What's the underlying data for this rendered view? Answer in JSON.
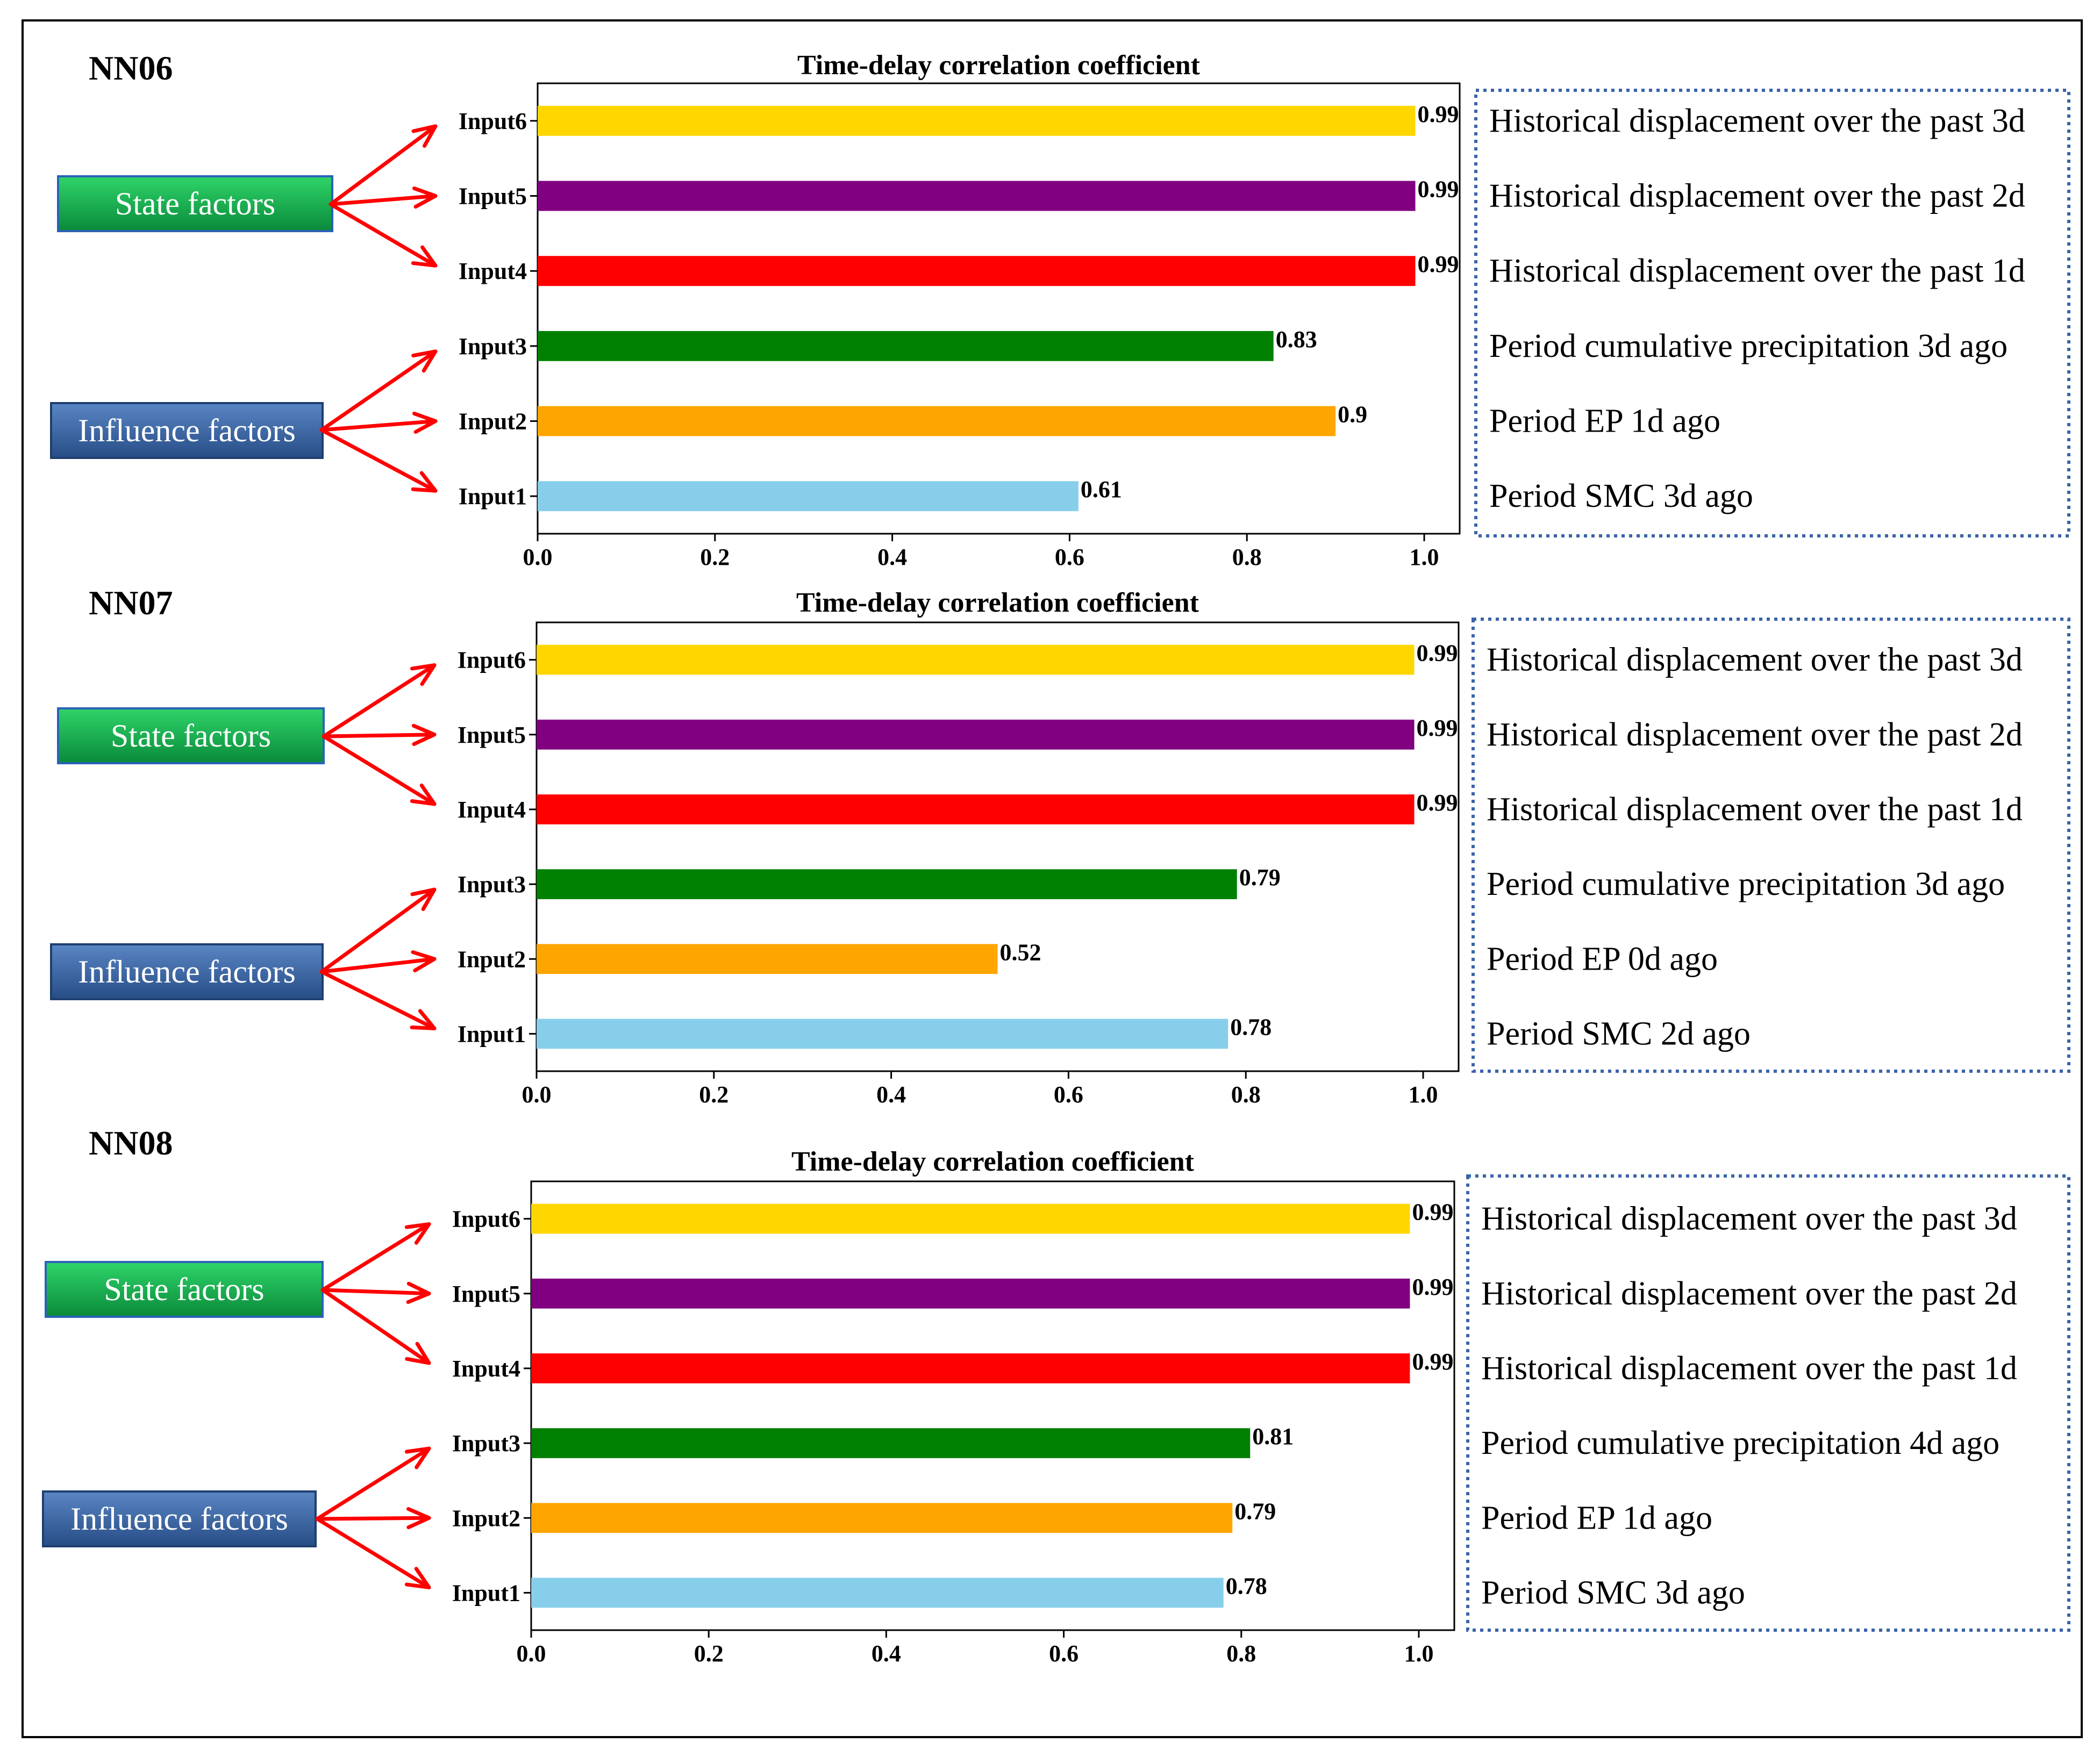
{
  "colors": {
    "state_box_top": "#2fd46a",
    "state_box_bottom": "#0a8a3a",
    "influence_box_top": "#5a86c4",
    "influence_box_bottom": "#274d86",
    "arrow": "#ff0000",
    "dotted_border": "#3a64a8"
  },
  "panels": [
    {
      "label": "NN06",
      "state_label": "State factors",
      "influence_label": "Influence factors",
      "descriptions": [
        "Historical displacement over the past 3d",
        "Historical displacement over the past 2d",
        "Historical displacement over the past 1d",
        "Period cumulative precipitation 3d ago",
        "Period EP 1d ago",
        "Period SMC 3d ago"
      ]
    },
    {
      "label": "NN07",
      "state_label": "State factors",
      "influence_label": "Influence factors",
      "descriptions": [
        "Historical displacement over the past 3d",
        "Historical displacement over the past 2d",
        "Historical displacement over the past 1d",
        "Period cumulative precipitation 3d ago",
        "Period EP 0d ago",
        "Period SMC 2d ago"
      ]
    },
    {
      "label": "NN08",
      "state_label": "State factors",
      "influence_label": "Influence factors",
      "descriptions": [
        "Historical displacement over the past 3d",
        "Historical displacement over the past 2d",
        "Historical displacement over the past 1d",
        "Period cumulative precipitation 4d ago",
        "Period EP 1d ago",
        "Period SMC 3d ago"
      ]
    }
  ],
  "chart_data": [
    {
      "type": "bar",
      "orientation": "horizontal",
      "title": "Time-delay correlation coefficient",
      "categories": [
        "Input6",
        "Input5",
        "Input4",
        "Input3",
        "Input2",
        "Input1"
      ],
      "values": [
        0.99,
        0.99,
        0.99,
        0.83,
        0.9,
        0.61
      ],
      "value_labels": [
        "0.99",
        "0.99",
        "0.99",
        "0.83",
        "0.9",
        "0.61"
      ],
      "colors": [
        "#FFD700",
        "#800080",
        "#FF0000",
        "#008000",
        "#FFA500",
        "#87CEEB"
      ],
      "xlim": [
        0,
        1.04
      ],
      "xticks": [
        0.0,
        0.2,
        0.4,
        0.6,
        0.8,
        1.0
      ],
      "xtick_labels": [
        "0.0",
        "0.2",
        "0.4",
        "0.6",
        "0.8",
        "1.0"
      ],
      "grid": false,
      "legend": "none"
    },
    {
      "type": "bar",
      "orientation": "horizontal",
      "title": "Time-delay correlation coefficient",
      "categories": [
        "Input6",
        "Input5",
        "Input4",
        "Input3",
        "Input2",
        "Input1"
      ],
      "values": [
        0.99,
        0.99,
        0.99,
        0.79,
        0.52,
        0.78
      ],
      "value_labels": [
        "0.99",
        "0.99",
        "0.99",
        "0.79",
        "0.52",
        "0.78"
      ],
      "colors": [
        "#FFD700",
        "#800080",
        "#FF0000",
        "#008000",
        "#FFA500",
        "#87CEEB"
      ],
      "xlim": [
        0,
        1.04
      ],
      "xticks": [
        0.0,
        0.2,
        0.4,
        0.6,
        0.8,
        1.0
      ],
      "xtick_labels": [
        "0.0",
        "0.2",
        "0.4",
        "0.6",
        "0.8",
        "1.0"
      ],
      "grid": false,
      "legend": "none"
    },
    {
      "type": "bar",
      "orientation": "horizontal",
      "title": "Time-delay correlation coefficient",
      "categories": [
        "Input6",
        "Input5",
        "Input4",
        "Input3",
        "Input2",
        "Input1"
      ],
      "values": [
        0.99,
        0.99,
        0.99,
        0.81,
        0.79,
        0.78
      ],
      "value_labels": [
        "0.99",
        "0.99",
        "0.99",
        "0.81",
        "0.79",
        "0.78"
      ],
      "colors": [
        "#FFD700",
        "#800080",
        "#FF0000",
        "#008000",
        "#FFA500",
        "#87CEEB"
      ],
      "xlim": [
        0,
        1.04
      ],
      "xticks": [
        0.0,
        0.2,
        0.4,
        0.6,
        0.8,
        1.0
      ],
      "xtick_labels": [
        "0.0",
        "0.2",
        "0.4",
        "0.6",
        "0.8",
        "1.0"
      ],
      "grid": false,
      "legend": "none"
    }
  ]
}
